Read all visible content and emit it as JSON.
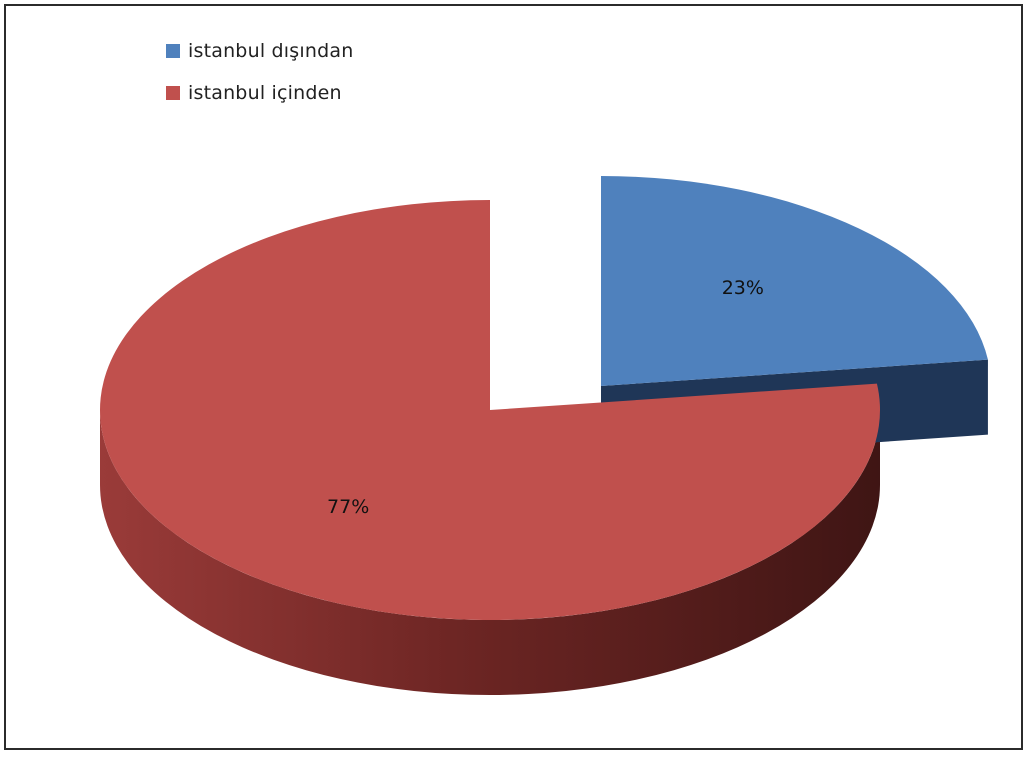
{
  "chart_data": {
    "type": "pie",
    "title": "",
    "legend_placement": "top-left",
    "series": [
      {
        "name": "istanbul dışından",
        "value": 23,
        "label": "23%",
        "color": "#4f81bd"
      },
      {
        "name": "istanbul içinden",
        "value": 77,
        "label": "77%",
        "color": "#c0504d"
      }
    ]
  }
}
